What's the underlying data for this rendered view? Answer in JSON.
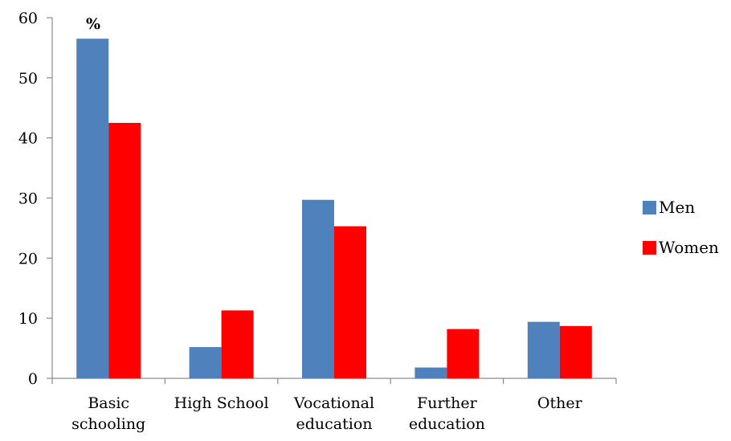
{
  "chart_data": {
    "type": "bar",
    "unit_label": "%",
    "categories": [
      [
        "Basic",
        "schooling"
      ],
      [
        "High School"
      ],
      [
        "Vocational",
        "education"
      ],
      [
        "Further",
        "education"
      ],
      [
        "Other"
      ]
    ],
    "series": [
      {
        "name": "Men",
        "color": "#4f81bd",
        "values": [
          56.5,
          5.2,
          29.7,
          1.8,
          9.4
        ]
      },
      {
        "name": "Women",
        "color": "#ff0000",
        "values": [
          42.5,
          11.3,
          25.3,
          8.2,
          8.7
        ]
      }
    ],
    "ylim": [
      0,
      60
    ],
    "yticks": [
      0,
      10,
      20,
      30,
      40,
      50,
      60
    ],
    "grid": false,
    "legend_position": "right"
  }
}
